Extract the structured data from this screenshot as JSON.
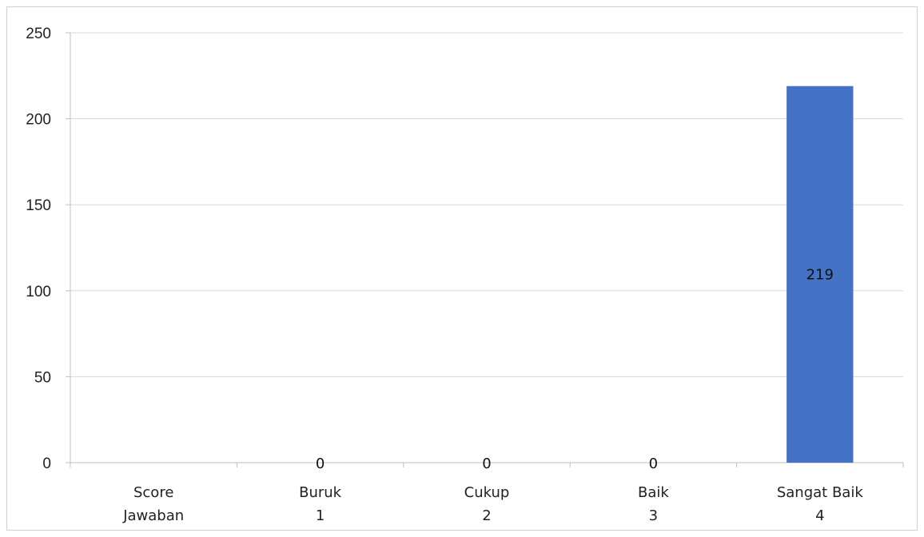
{
  "chart_data": {
    "type": "bar",
    "categories": [
      {
        "lines": [
          "Score",
          "Jawaban"
        ]
      },
      {
        "lines": [
          "Buruk",
          "1"
        ]
      },
      {
        "lines": [
          "Cukup",
          "2"
        ]
      },
      {
        "lines": [
          "Baik",
          "3"
        ]
      },
      {
        "lines": [
          "Sangat Baik",
          "4"
        ]
      }
    ],
    "values": [
      null,
      0,
      0,
      0,
      219
    ],
    "data_labels": [
      "",
      "0",
      "0",
      "0",
      "219"
    ],
    "ylim": [
      0,
      250
    ],
    "yticks": [
      0,
      50,
      100,
      150,
      200,
      250
    ],
    "grid": true,
    "bar_color": "#4472c4",
    "gridline_color": "#d9d9d9",
    "axis_color": "#bfbfbf"
  }
}
